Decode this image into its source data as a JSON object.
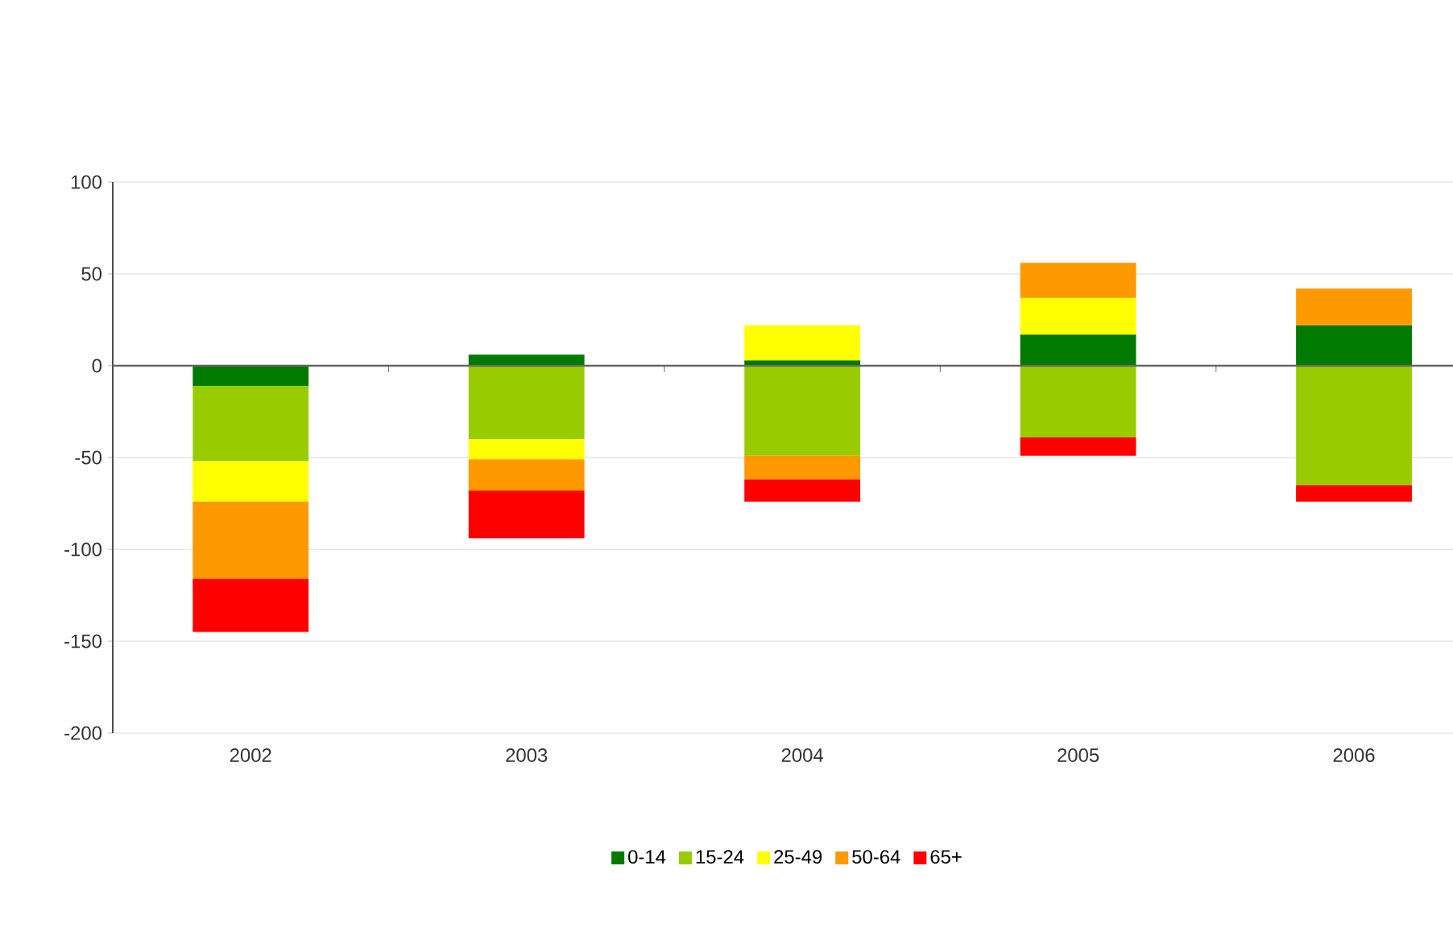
{
  "chart_data": {
    "type": "bar",
    "stacked": true,
    "categories": [
      "2002",
      "2003",
      "2004",
      "2005",
      "2006"
    ],
    "series": [
      {
        "name": "0-14",
        "color": "#007a00",
        "values": [
          -11,
          6,
          3,
          17,
          22
        ]
      },
      {
        "name": "15-24",
        "color": "#99cc00",
        "values": [
          -41,
          -40,
          -49,
          -39,
          -65
        ]
      },
      {
        "name": "25-49",
        "color": "#ffff00",
        "values": [
          -22,
          -11,
          19,
          20,
          null
        ]
      },
      {
        "name": "50-64",
        "color": "#ff9900",
        "values": [
          -42,
          -17,
          -13,
          19,
          20
        ]
      },
      {
        "name": "65+",
        "color": "#ff0000",
        "values": [
          -29,
          -26,
          -12,
          -10,
          -9
        ]
      }
    ],
    "ylim": [
      -200,
      100
    ],
    "yticks": [
      -200,
      -150,
      -100,
      -50,
      0,
      50,
      100
    ],
    "grid": "y",
    "legend": "bottom"
  }
}
